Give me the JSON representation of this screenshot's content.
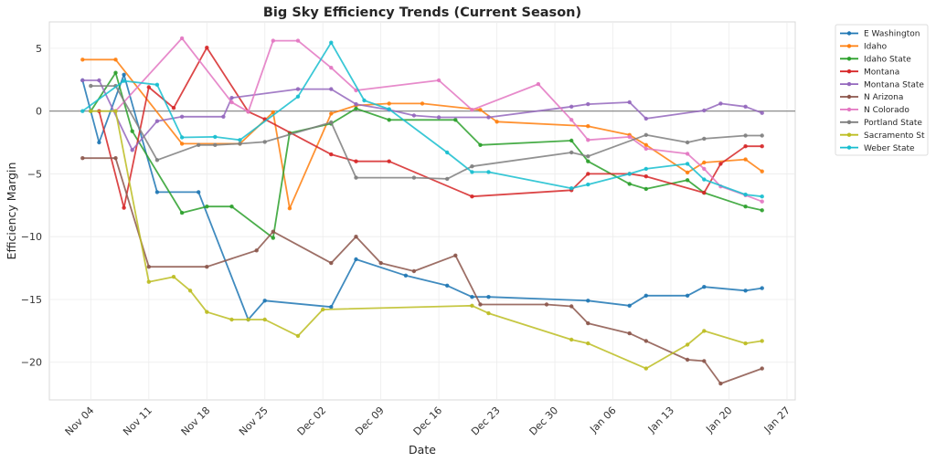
{
  "chart_data": {
    "type": "line",
    "title": "Big Sky Efficiency Trends (Current Season)",
    "xlabel": "Date",
    "ylabel": "Efficiency Margin",
    "ylim": [
      -23,
      7.1
    ],
    "xlim": [
      "Oct 30",
      "Jan 28"
    ],
    "grid": true,
    "zero_line": 0,
    "legend_position": "upper-right-outside",
    "x_ticks": [
      "Nov 04",
      "Nov 11",
      "Nov 18",
      "Nov 25",
      "Dec 02",
      "Dec 09",
      "Dec 16",
      "Dec 23",
      "Dec 30",
      "Jan 06",
      "Jan 13",
      "Jan 20",
      "Jan 27"
    ],
    "y_ticks": [
      5,
      0,
      -5,
      -10,
      -15,
      -20
    ],
    "y_tick_labels": [
      "5",
      "0",
      "−5",
      "−10",
      "−15",
      "−20"
    ],
    "series": [
      {
        "name": "E Washington",
        "color": "#1f77b4",
        "x": [
          "11-03",
          "11-05",
          "11-08",
          "11-12",
          "11-17",
          "11-23",
          "11-25",
          "12-03",
          "12-06",
          "12-12",
          "12-17",
          "12-20",
          "12-22",
          "01-03",
          "01-08",
          "01-10",
          "01-15",
          "01-17",
          "01-22",
          "01-24"
        ],
        "y": [
          2.45,
          -2.5,
          2.9,
          -6.45,
          -6.45,
          -16.6,
          -15.1,
          -15.6,
          -11.8,
          -13.1,
          -13.9,
          -14.8,
          -14.8,
          -15.1,
          -15.5,
          -14.7,
          -14.7,
          -14.0,
          -14.3,
          -14.1
        ]
      },
      {
        "name": "Idaho",
        "color": "#ff7f0e",
        "x": [
          "11-03",
          "11-07",
          "11-15",
          "11-22",
          "11-26",
          "11-28",
          "12-03",
          "12-06",
          "12-10",
          "12-14",
          "12-21",
          "12-23",
          "01-03",
          "01-08",
          "01-10",
          "01-15",
          "01-17",
          "01-22",
          "01-24"
        ],
        "y": [
          4.1,
          4.1,
          -2.6,
          -2.6,
          -0.1,
          -7.75,
          -0.2,
          0.45,
          0.6,
          0.6,
          0.1,
          -0.85,
          -1.2,
          -1.9,
          -2.7,
          -4.9,
          -4.1,
          -3.85,
          -4.8
        ]
      },
      {
        "name": "Idaho State",
        "color": "#2ca02c",
        "x": [
          "11-04",
          "11-07",
          "11-09",
          "11-15",
          "11-18",
          "11-21",
          "11-26",
          "11-28",
          "12-03",
          "12-06",
          "12-10",
          "12-18",
          "12-21",
          "01-01",
          "01-03",
          "01-08",
          "01-10",
          "01-15",
          "01-17",
          "01-22",
          "01-24"
        ],
        "y": [
          0,
          3.05,
          -1.6,
          -8.1,
          -7.6,
          -7.6,
          -10.1,
          -1.75,
          -1.0,
          0.2,
          -0.7,
          -0.7,
          -2.7,
          -2.35,
          -4.0,
          -5.8,
          -6.2,
          -5.5,
          -6.5,
          -7.6,
          -7.9
        ]
      },
      {
        "name": "Montana",
        "color": "#d62728",
        "x": [
          "11-05",
          "11-08",
          "11-11",
          "11-14",
          "11-18",
          "11-23",
          "11-25",
          "12-03",
          "12-06",
          "12-10",
          "12-20",
          "01-01",
          "01-03",
          "01-08",
          "01-10",
          "01-17",
          "01-19",
          "01-22",
          "01-24"
        ],
        "y": [
          0,
          -7.7,
          1.9,
          0.25,
          5.05,
          -0.05,
          -0.65,
          -3.45,
          -4.0,
          -4.0,
          -6.8,
          -6.3,
          -5.0,
          -5.0,
          -5.2,
          -6.5,
          -4.2,
          -2.8,
          -2.8
        ]
      },
      {
        "name": "Montana State",
        "color": "#9467bd",
        "x": [
          "11-03",
          "11-05",
          "11-09",
          "11-12",
          "11-15",
          "11-20",
          "11-21",
          "11-29",
          "12-03",
          "12-06",
          "12-10",
          "12-13",
          "12-16",
          "12-22",
          "01-01",
          "01-03",
          "01-08",
          "01-10",
          "01-17",
          "01-19",
          "01-22",
          "01-24"
        ],
        "y": [
          2.45,
          2.45,
          -3.1,
          -0.8,
          -0.45,
          -0.45,
          1.05,
          1.75,
          1.75,
          0.55,
          0.1,
          -0.35,
          -0.5,
          -0.5,
          0.35,
          0.55,
          0.7,
          -0.6,
          0.05,
          0.6,
          0.35,
          -0.15
        ]
      },
      {
        "name": "N Arizona",
        "color": "#8c564b",
        "x": [
          "11-03",
          "11-07",
          "11-11",
          "11-18",
          "11-24",
          "11-26",
          "12-03",
          "12-06",
          "12-09",
          "12-13",
          "12-18",
          "12-21",
          "12-29",
          "01-01",
          "01-03",
          "01-08",
          "01-10",
          "01-15",
          "01-17",
          "01-19",
          "01-24"
        ],
        "y": [
          -3.75,
          -3.75,
          -12.4,
          -12.4,
          -11.1,
          -9.6,
          -12.1,
          -10.0,
          -12.1,
          -12.75,
          -11.5,
          -15.4,
          -15.4,
          -15.55,
          -16.9,
          -17.7,
          -18.3,
          -19.8,
          -19.9,
          -21.7,
          -20.5
        ]
      },
      {
        "name": "N Colorado",
        "color": "#e377c2",
        "x": [
          "11-07",
          "11-15",
          "11-21",
          "11-23",
          "11-26",
          "11-29",
          "12-03",
          "12-06",
          "12-16",
          "12-20",
          "12-28",
          "01-01",
          "01-03",
          "01-08",
          "01-10",
          "01-15",
          "01-17",
          "01-19",
          "01-22",
          "01-24"
        ],
        "y": [
          0,
          5.8,
          0.7,
          -0.05,
          5.6,
          5.6,
          3.45,
          1.65,
          2.45,
          0.1,
          2.15,
          -0.7,
          -2.3,
          -2.05,
          -3.0,
          -3.4,
          -4.6,
          -6.0,
          -6.7,
          -7.2
        ]
      },
      {
        "name": "Portland State",
        "color": "#7f7f7f",
        "x": [
          "11-04",
          "11-07",
          "11-12",
          "11-17",
          "11-19",
          "11-22",
          "11-25",
          "12-03",
          "12-06",
          "12-13",
          "12-17",
          "12-20",
          "01-01",
          "01-03",
          "01-10",
          "01-15",
          "01-17",
          "01-22",
          "01-24"
        ],
        "y": [
          2.0,
          2.0,
          -3.9,
          -2.7,
          -2.7,
          -2.6,
          -2.45,
          -0.9,
          -5.3,
          -5.3,
          -5.4,
          -4.4,
          -3.3,
          -3.6,
          -1.9,
          -2.5,
          -2.2,
          -1.95,
          -1.95
        ]
      },
      {
        "name": "Sacramento St",
        "color": "#bcbd22",
        "x": [
          "11-04",
          "11-07",
          "11-11",
          "11-14",
          "11-16",
          "11-18",
          "11-21",
          "11-23",
          "11-25",
          "11-29",
          "12-02",
          "12-20",
          "12-22",
          "01-01",
          "01-03",
          "01-10",
          "01-15",
          "01-17",
          "01-22",
          "01-24"
        ],
        "y": [
          0,
          0,
          -13.6,
          -13.2,
          -14.3,
          -16.0,
          -16.6,
          -16.6,
          -16.6,
          -17.9,
          -15.8,
          -15.5,
          -16.1,
          -18.2,
          -18.5,
          -20.5,
          -18.6,
          -17.5,
          -18.5,
          -18.3
        ]
      },
      {
        "name": "Weber State",
        "color": "#17becf",
        "x": [
          "11-03",
          "11-08",
          "11-12",
          "11-15",
          "11-19",
          "11-22",
          "11-29",
          "12-03",
          "12-07",
          "12-10",
          "12-17",
          "12-20",
          "12-22",
          "01-01",
          "01-03",
          "01-08",
          "01-10",
          "01-15",
          "01-17",
          "01-22",
          "01-24"
        ],
        "y": [
          0,
          2.4,
          2.1,
          -2.1,
          -2.05,
          -2.3,
          1.15,
          5.45,
          0.85,
          0.15,
          -3.3,
          -4.85,
          -4.85,
          -6.15,
          -5.85,
          -5.0,
          -4.6,
          -4.2,
          -5.45,
          -6.65,
          -6.8
        ]
      }
    ]
  }
}
